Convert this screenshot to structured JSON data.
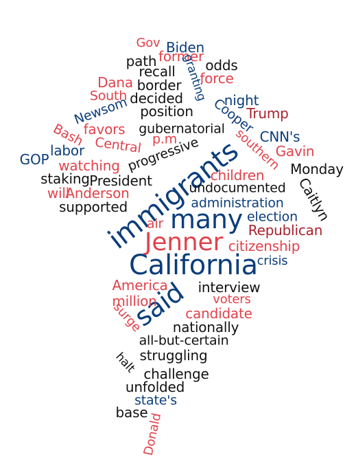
{
  "palette": {
    "blue": "#0b3d7a",
    "red": "#e0424b",
    "dark_red": "#a8222e",
    "black": "#111111"
  },
  "words": [
    {
      "text": "Gov",
      "color": "red"
    },
    {
      "text": "Biden",
      "color": "blue"
    },
    {
      "text": "path",
      "color": "black"
    },
    {
      "text": "former",
      "color": "red"
    },
    {
      "text": "odds",
      "color": "black"
    },
    {
      "text": "recall",
      "color": "black"
    },
    {
      "text": "granting",
      "color": "blue"
    },
    {
      "text": "force",
      "color": "red"
    },
    {
      "text": "Dana",
      "color": "red"
    },
    {
      "text": "border",
      "color": "black"
    },
    {
      "text": "South",
      "color": "red"
    },
    {
      "text": "decided",
      "color": "black"
    },
    {
      "text": "night",
      "color": "blue"
    },
    {
      "text": "Newsom",
      "color": "blue"
    },
    {
      "text": "position",
      "color": "black"
    },
    {
      "text": "Cooper",
      "color": "blue"
    },
    {
      "text": "Trump",
      "color": "dark_red"
    },
    {
      "text": "Bash",
      "color": "red"
    },
    {
      "text": "favors",
      "color": "red"
    },
    {
      "text": "gubernatorial",
      "color": "black"
    },
    {
      "text": "CNN's",
      "color": "blue"
    },
    {
      "text": "southern",
      "color": "red"
    },
    {
      "text": "p.m",
      "color": "red"
    },
    {
      "text": "Central",
      "color": "red"
    },
    {
      "text": "progressive",
      "color": "black"
    },
    {
      "text": "labor",
      "color": "blue"
    },
    {
      "text": "GOP",
      "color": "blue"
    },
    {
      "text": "Gavin",
      "color": "red"
    },
    {
      "text": "watching",
      "color": "red"
    },
    {
      "text": "immigrants",
      "color": "blue"
    },
    {
      "text": "Monday",
      "color": "black"
    },
    {
      "text": "staking",
      "color": "black"
    },
    {
      "text": "President",
      "color": "black"
    },
    {
      "text": "children",
      "color": "red"
    },
    {
      "text": "Caitlyn",
      "color": "black"
    },
    {
      "text": "will",
      "color": "red"
    },
    {
      "text": "Anderson",
      "color": "red"
    },
    {
      "text": "undocumented",
      "color": "black"
    },
    {
      "text": "supported",
      "color": "black"
    },
    {
      "text": "administration",
      "color": "blue"
    },
    {
      "text": "many",
      "color": "blue"
    },
    {
      "text": "election",
      "color": "blue"
    },
    {
      "text": "air",
      "color": "red"
    },
    {
      "text": "Republican",
      "color": "dark_red"
    },
    {
      "text": "Jenner",
      "color": "red"
    },
    {
      "text": "citizenship",
      "color": "red"
    },
    {
      "text": "California",
      "color": "blue"
    },
    {
      "text": "crisis",
      "color": "blue"
    },
    {
      "text": "America",
      "color": "red"
    },
    {
      "text": "interview",
      "color": "black"
    },
    {
      "text": "said",
      "color": "blue"
    },
    {
      "text": "million",
      "color": "red"
    },
    {
      "text": "voters",
      "color": "red"
    },
    {
      "text": "surge",
      "color": "red"
    },
    {
      "text": "candidate",
      "color": "red"
    },
    {
      "text": "nationally",
      "color": "black"
    },
    {
      "text": "all-but-certain",
      "color": "black"
    },
    {
      "text": "halt",
      "color": "black"
    },
    {
      "text": "struggling",
      "color": "black"
    },
    {
      "text": "challenge",
      "color": "black"
    },
    {
      "text": "unfolded",
      "color": "black"
    },
    {
      "text": "state's",
      "color": "blue"
    },
    {
      "text": "base",
      "color": "black"
    },
    {
      "text": "Donald",
      "color": "red"
    }
  ]
}
